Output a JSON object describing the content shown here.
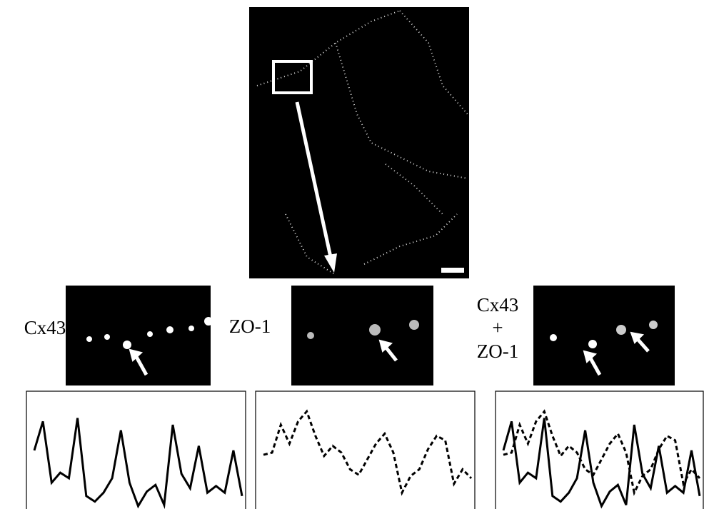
{
  "panels": {
    "cx43": {
      "label": "Cx43"
    },
    "zo1": {
      "label": "ZO-1"
    },
    "merge": {
      "label_top": "Cx43",
      "label_mid": "+",
      "label_bottom": "ZO-1"
    }
  },
  "chart_data": [
    {
      "type": "line",
      "ylim": [
        0,
        100
      ],
      "series": [
        {
          "color": "#000000",
          "style": "solid",
          "values": [
            52,
            78,
            23,
            32,
            27,
            81,
            11,
            6,
            14,
            27,
            70,
            23,
            2,
            15,
            21,
            3,
            75,
            31,
            18,
            56,
            14,
            20,
            14,
            52,
            11
          ]
        }
      ]
    },
    {
      "type": "line",
      "ylim": [
        0,
        100
      ],
      "series": [
        {
          "color": "#000000",
          "style": "dashed",
          "values": [
            48,
            50,
            75,
            58,
            78,
            87,
            65,
            47,
            56,
            50,
            35,
            30,
            44,
            58,
            67,
            50,
            14,
            29,
            35,
            53,
            65,
            61,
            22,
            35,
            27
          ]
        }
      ]
    },
    {
      "type": "line",
      "ylim": [
        0,
        100
      ],
      "series": [
        {
          "color": "#000000",
          "style": "solid",
          "values": [
            52,
            78,
            23,
            32,
            27,
            81,
            11,
            6,
            14,
            27,
            70,
            23,
            2,
            15,
            21,
            3,
            75,
            31,
            18,
            56,
            14,
            20,
            14,
            52,
            11
          ]
        },
        {
          "color": "#000000",
          "style": "dashed",
          "values": [
            48,
            50,
            75,
            58,
            78,
            87,
            65,
            47,
            56,
            50,
            35,
            30,
            44,
            58,
            67,
            50,
            14,
            29,
            35,
            53,
            65,
            61,
            22,
            35,
            27
          ]
        }
      ]
    }
  ]
}
